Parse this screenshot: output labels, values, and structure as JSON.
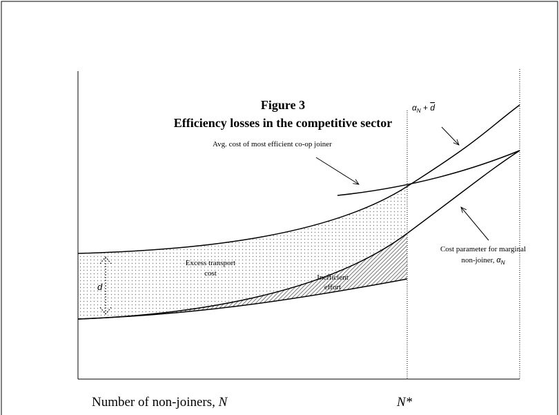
{
  "figure": {
    "number": "Figure 3",
    "title": "Efficiency losses in the competitive sector",
    "labels": {
      "avg_cost": "Avg. cost of most efficient co-op joiner",
      "upper_curve": {
        "var": "α",
        "sub": "N",
        "rest": " + ",
        "bar": "d"
      },
      "cost_param": {
        "line1": "Cost parameter for marginal",
        "line2": "non-joiner, ",
        "var": "α",
        "sub": "N"
      },
      "excess": {
        "line1": "Excess transport",
        "line2": "cost"
      },
      "inefficient": {
        "line1": "Inefficient",
        "line2": "effort"
      },
      "d": "d"
    },
    "x_axis": {
      "text": "Number of non-joiners, ",
      "var": "N"
    },
    "n_star": "N*"
  }
}
